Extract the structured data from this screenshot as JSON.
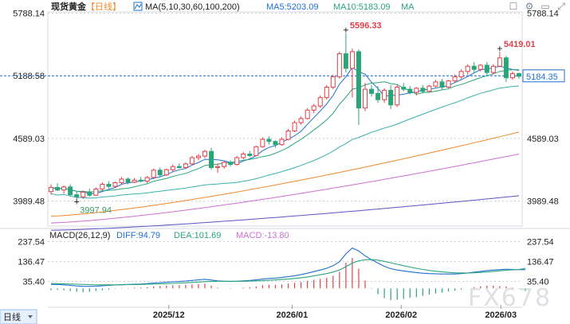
{
  "header": {
    "title": "现货黄金",
    "period_label": "【日线】",
    "ma_settings": "MA(5,10,30,60,100,200)",
    "ma5": "MA5:5203.09",
    "ma10": "MA10:5183.09",
    "ma_more": "MA"
  },
  "toolbar": {
    "icons": [
      "close-icon",
      "settings-icon",
      "minimize-icon",
      "maximize-icon"
    ],
    "glyphs": [
      "☐",
      "⚙",
      "▭",
      "⤢"
    ]
  },
  "macd": {
    "title": "MACD(26,12,9)",
    "diff": "DIFF:94.79",
    "dea": "DEA:101.69",
    "macd": "MACD:-13.80"
  },
  "period_selector": {
    "label": "日线",
    "icon": "caret-down-icon"
  },
  "watermark": "FX678",
  "colors": {
    "up": "#e0424a",
    "down": "#2aa57a",
    "ma5": "#1f6fd1",
    "ma10": "#2aa57a",
    "ma30": "#3bb0ae",
    "ma60": "#f08a2e",
    "ma100": "#cf6fcf",
    "ma200": "#5b54c6",
    "diff": "#1f6fd1",
    "dea": "#2aa57a",
    "grid": "#c8cdd6",
    "text": "#222222"
  },
  "chart_data": [
    {
      "type": "candlestick",
      "title": "现货黄金",
      "price_ticks": [
        "5788.14",
        "5188.58",
        "4589.03",
        "3989.48"
      ],
      "ylim": [
        3750,
        5800
      ],
      "x_ticks": [
        "2025/12",
        "2026/01",
        "2026/02",
        "2026/03"
      ],
      "last_price": "5184.35",
      "current_price_line": 5188.58,
      "annotations": [
        {
          "label": "5596.33",
          "value": 5596.33,
          "type": "high"
        },
        {
          "label": "5419.01",
          "value": 5419.01,
          "type": "high"
        },
        {
          "label": "3997.94",
          "value": 3997.94,
          "type": "low"
        }
      ],
      "candles": [
        {
          "o": 4080,
          "h": 4150,
          "l": 4050,
          "c": 4120
        },
        {
          "o": 4120,
          "h": 4160,
          "l": 4085,
          "c": 4095
        },
        {
          "o": 4095,
          "h": 4140,
          "l": 4060,
          "c": 4125
        },
        {
          "o": 4125,
          "h": 4150,
          "l": 4040,
          "c": 4050
        },
        {
          "o": 4050,
          "h": 4080,
          "l": 3998,
          "c": 4030
        },
        {
          "o": 4030,
          "h": 4090,
          "l": 4010,
          "c": 4075
        },
        {
          "o": 4075,
          "h": 4110,
          "l": 4030,
          "c": 4045
        },
        {
          "o": 4045,
          "h": 4120,
          "l": 4040,
          "c": 4105
        },
        {
          "o": 4105,
          "h": 4170,
          "l": 4090,
          "c": 4150
        },
        {
          "o": 4150,
          "h": 4180,
          "l": 4110,
          "c": 4130
        },
        {
          "o": 4130,
          "h": 4175,
          "l": 4115,
          "c": 4165
        },
        {
          "o": 4165,
          "h": 4220,
          "l": 4150,
          "c": 4200
        },
        {
          "o": 4200,
          "h": 4215,
          "l": 4150,
          "c": 4170
        },
        {
          "o": 4170,
          "h": 4210,
          "l": 4160,
          "c": 4190
        },
        {
          "o": 4190,
          "h": 4220,
          "l": 4170,
          "c": 4180
        },
        {
          "o": 4180,
          "h": 4230,
          "l": 4160,
          "c": 4215
        },
        {
          "o": 4215,
          "h": 4300,
          "l": 4200,
          "c": 4285
        },
        {
          "o": 4285,
          "h": 4310,
          "l": 4220,
          "c": 4240
        },
        {
          "o": 4240,
          "h": 4300,
          "l": 4230,
          "c": 4290
        },
        {
          "o": 4290,
          "h": 4340,
          "l": 4270,
          "c": 4320
        },
        {
          "o": 4320,
          "h": 4350,
          "l": 4300,
          "c": 4310
        },
        {
          "o": 4310,
          "h": 4360,
          "l": 4300,
          "c": 4345
        },
        {
          "o": 4345,
          "h": 4420,
          "l": 4330,
          "c": 4405
        },
        {
          "o": 4405,
          "h": 4440,
          "l": 4380,
          "c": 4420
        },
        {
          "o": 4420,
          "h": 4480,
          "l": 4400,
          "c": 4465
        },
        {
          "o": 4465,
          "h": 4500,
          "l": 4290,
          "c": 4310
        },
        {
          "o": 4310,
          "h": 4350,
          "l": 4260,
          "c": 4320
        },
        {
          "o": 4320,
          "h": 4370,
          "l": 4300,
          "c": 4360
        },
        {
          "o": 4360,
          "h": 4380,
          "l": 4320,
          "c": 4340
        },
        {
          "o": 4340,
          "h": 4420,
          "l": 4330,
          "c": 4405
        },
        {
          "o": 4405,
          "h": 4460,
          "l": 4390,
          "c": 4440
        },
        {
          "o": 4440,
          "h": 4470,
          "l": 4410,
          "c": 4425
        },
        {
          "o": 4425,
          "h": 4520,
          "l": 4420,
          "c": 4510
        },
        {
          "o": 4510,
          "h": 4600,
          "l": 4500,
          "c": 4580
        },
        {
          "o": 4580,
          "h": 4610,
          "l": 4530,
          "c": 4560
        },
        {
          "o": 4560,
          "h": 4570,
          "l": 4500,
          "c": 4530
        },
        {
          "o": 4530,
          "h": 4600,
          "l": 4520,
          "c": 4580
        },
        {
          "o": 4580,
          "h": 4680,
          "l": 4570,
          "c": 4660
        },
        {
          "o": 4660,
          "h": 4760,
          "l": 4650,
          "c": 4740
        },
        {
          "o": 4740,
          "h": 4800,
          "l": 4720,
          "c": 4780
        },
        {
          "o": 4780,
          "h": 4880,
          "l": 4770,
          "c": 4860
        },
        {
          "o": 4860,
          "h": 4920,
          "l": 4830,
          "c": 4900
        },
        {
          "o": 4900,
          "h": 5000,
          "l": 4880,
          "c": 4980
        },
        {
          "o": 4980,
          "h": 5100,
          "l": 4960,
          "c": 5080
        },
        {
          "o": 5080,
          "h": 5200,
          "l": 5060,
          "c": 5180
        },
        {
          "o": 5180,
          "h": 5420,
          "l": 5160,
          "c": 5400
        },
        {
          "o": 5400,
          "h": 5596.33,
          "l": 5220,
          "c": 5260
        },
        {
          "o": 5260,
          "h": 5450,
          "l": 4980,
          "c": 5420
        },
        {
          "o": 5420,
          "h": 5440,
          "l": 4720,
          "c": 4880
        },
        {
          "o": 4880,
          "h": 5120,
          "l": 4850,
          "c": 5060
        },
        {
          "o": 5060,
          "h": 5100,
          "l": 4990,
          "c": 5020
        },
        {
          "o": 5020,
          "h": 5090,
          "l": 4930,
          "c": 4960
        },
        {
          "o": 4960,
          "h": 5070,
          "l": 4930,
          "c": 5050
        },
        {
          "o": 5050,
          "h": 5100,
          "l": 4870,
          "c": 4910
        },
        {
          "o": 4910,
          "h": 5110,
          "l": 4890,
          "c": 5080
        },
        {
          "o": 5080,
          "h": 5120,
          "l": 5040,
          "c": 5060
        },
        {
          "o": 5060,
          "h": 5090,
          "l": 5010,
          "c": 5030
        },
        {
          "o": 5030,
          "h": 5080,
          "l": 5000,
          "c": 5070
        },
        {
          "o": 5070,
          "h": 5100,
          "l": 5020,
          "c": 5040
        },
        {
          "o": 5040,
          "h": 5100,
          "l": 5030,
          "c": 5090
        },
        {
          "o": 5090,
          "h": 5150,
          "l": 5080,
          "c": 5130
        },
        {
          "o": 5130,
          "h": 5160,
          "l": 5060,
          "c": 5080
        },
        {
          "o": 5080,
          "h": 5150,
          "l": 5070,
          "c": 5140
        },
        {
          "o": 5140,
          "h": 5200,
          "l": 5120,
          "c": 5180
        },
        {
          "o": 5180,
          "h": 5250,
          "l": 5160,
          "c": 5230
        },
        {
          "o": 5230,
          "h": 5300,
          "l": 5200,
          "c": 5280
        },
        {
          "o": 5280,
          "h": 5320,
          "l": 5220,
          "c": 5250
        },
        {
          "o": 5250,
          "h": 5300,
          "l": 5230,
          "c": 5290
        },
        {
          "o": 5290,
          "h": 5320,
          "l": 5190,
          "c": 5220
        },
        {
          "o": 5220,
          "h": 5300,
          "l": 5200,
          "c": 5280
        },
        {
          "o": 5280,
          "h": 5419.01,
          "l": 5270,
          "c": 5360
        },
        {
          "o": 5360,
          "h": 5380,
          "l": 5130,
          "c": 5170
        },
        {
          "o": 5170,
          "h": 5230,
          "l": 5150,
          "c": 5210
        },
        {
          "o": 5210,
          "h": 5220,
          "l": 5160,
          "c": 5184.35
        }
      ]
    },
    {
      "type": "bar",
      "title": "MACD(26,12,9)",
      "value_ticks": [
        "237.54",
        "136.47",
        "35.40"
      ],
      "ylim": [
        -80,
        300
      ],
      "series": [
        {
          "name": "DIFF",
          "values": [
            20,
            20,
            18,
            15,
            12,
            10,
            10,
            11,
            13,
            15,
            17,
            19,
            20,
            21,
            22,
            24,
            27,
            29,
            31,
            33,
            35,
            37,
            40,
            43,
            46,
            42,
            38,
            36,
            35,
            36,
            38,
            40,
            43,
            47,
            50,
            52,
            55,
            59,
            64,
            70,
            77,
            85,
            93,
            102,
            115,
            135,
            175,
            205,
            190,
            165,
            145,
            128,
            112,
            100,
            93,
            88,
            84,
            80,
            77,
            75,
            74,
            73,
            73,
            73,
            75,
            78,
            82,
            86,
            90,
            93,
            95,
            97,
            96,
            95,
            94.79
          ]
        },
        {
          "name": "DEA",
          "values": [
            25,
            24,
            23,
            22,
            21,
            20,
            19,
            18,
            18,
            18,
            18,
            18,
            19,
            19,
            20,
            21,
            22,
            23,
            24,
            25,
            27,
            28,
            30,
            32,
            34,
            35,
            36,
            36,
            36,
            36,
            36,
            37,
            38,
            39,
            41,
            43,
            45,
            47,
            50,
            54,
            58,
            63,
            69,
            75,
            83,
            93,
            110,
            128,
            140,
            145,
            146,
            143,
            137,
            130,
            122,
            115,
            108,
            102,
            96,
            91,
            87,
            84,
            81,
            79,
            78,
            78,
            79,
            81,
            83,
            86,
            89,
            92,
            94,
            96,
            101.69
          ]
        },
        {
          "name": "MACD",
          "values": [
            -10,
            -8,
            -10,
            -14,
            -18,
            -20,
            -18,
            -14,
            -10,
            -6,
            -2,
            2,
            2,
            4,
            4,
            6,
            10,
            12,
            14,
            16,
            16,
            18,
            20,
            22,
            24,
            14,
            4,
            0,
            -2,
            0,
            4,
            6,
            10,
            16,
            18,
            18,
            20,
            24,
            28,
            32,
            38,
            44,
            48,
            54,
            64,
            84,
            130,
            154,
            100,
            40,
            -2,
            -30,
            -50,
            -60,
            -58,
            -54,
            -48,
            -44,
            -38,
            -32,
            -26,
            -22,
            -16,
            -12,
            -6,
            0,
            6,
            10,
            14,
            14,
            12,
            10,
            4,
            -2,
            -13.8
          ]
        }
      ]
    }
  ]
}
